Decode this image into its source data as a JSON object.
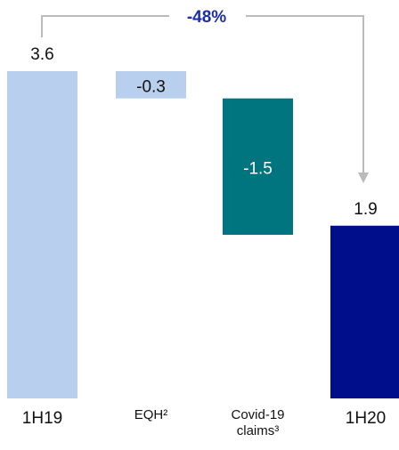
{
  "chart_data": {
    "type": "waterfall",
    "categories": [
      "1H19",
      "EQH²",
      "Covid-19 claims³",
      "1H20"
    ],
    "values": [
      3.6,
      -0.3,
      -1.5,
      1.9
    ],
    "colors": [
      "#b8d0ee",
      "#b8d0ee",
      "#00747f",
      "#000e8c"
    ],
    "ylim": [
      0,
      3.6
    ],
    "annotation": "-48%"
  }
}
